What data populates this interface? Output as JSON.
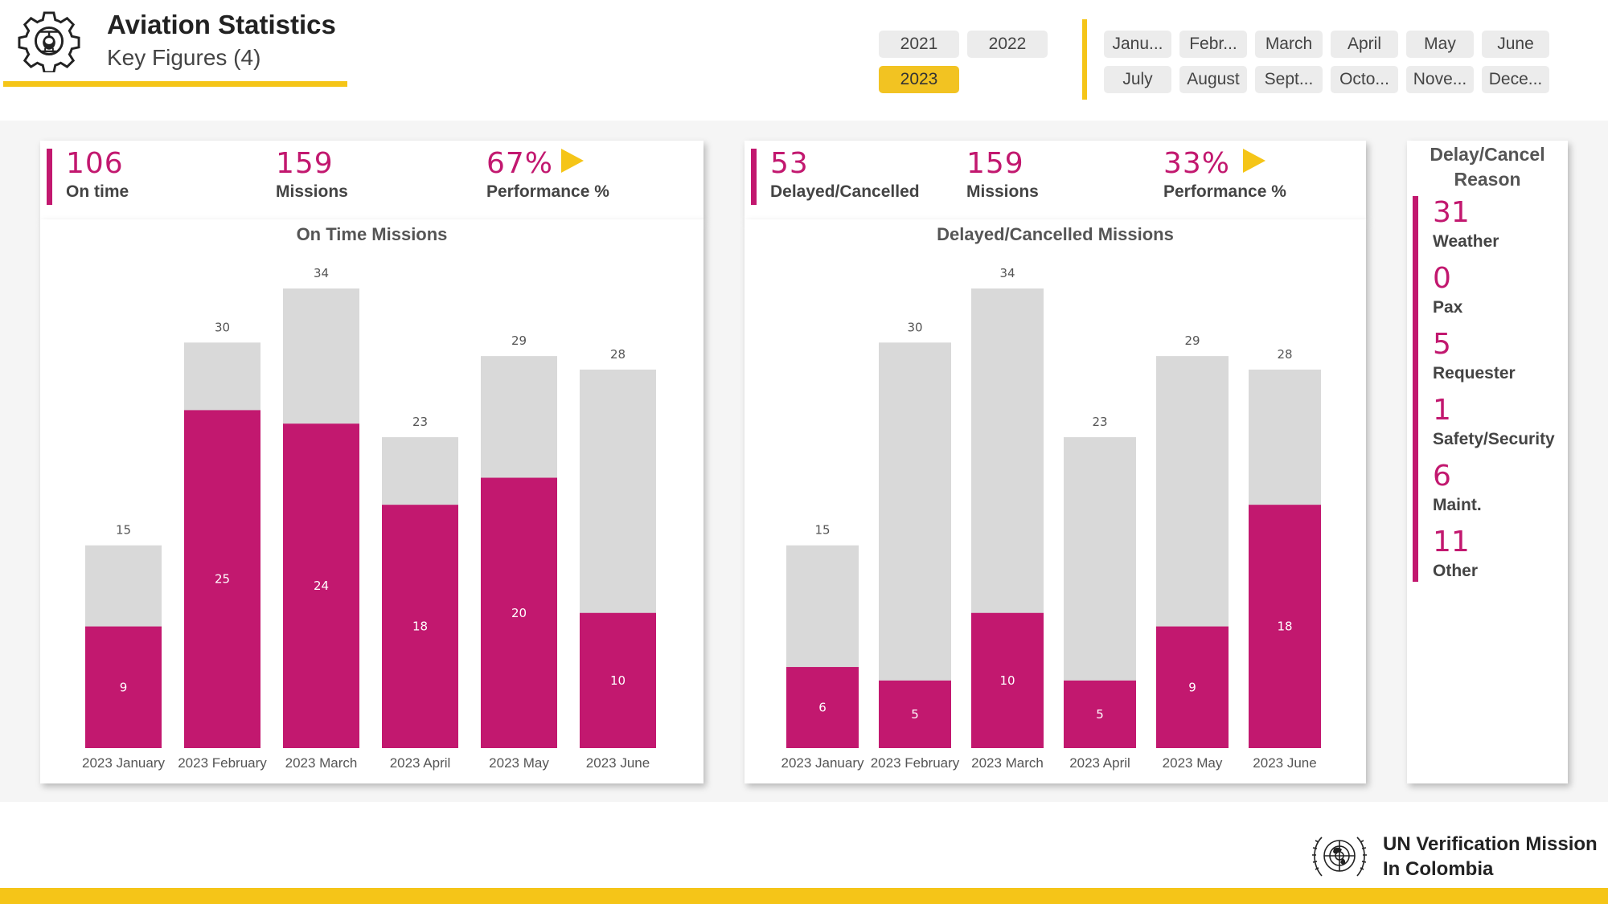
{
  "header": {
    "title": "Aviation Statistics",
    "subtitle": "Key Figures (4)",
    "logo_icon": "helicopter-gear-icon"
  },
  "year_slicer": [
    {
      "label": "2021",
      "selected": false
    },
    {
      "label": "2022",
      "selected": false
    },
    {
      "label": "2023",
      "selected": true
    }
  ],
  "month_slicer": [
    "Janu...",
    "Febr...",
    "March",
    "April",
    "May",
    "June",
    "July",
    "August",
    "Sept...",
    "Octo...",
    "Nove...",
    "Dece..."
  ],
  "on_time": {
    "kpis": [
      {
        "value": "106",
        "label": "On time"
      },
      {
        "value": "159",
        "label": "Missions"
      },
      {
        "value": "67%",
        "label": "Performance %"
      }
    ]
  },
  "delayed": {
    "kpis": [
      {
        "value": "53",
        "label": "Delayed/Cancelled"
      },
      {
        "value": "159",
        "label": "Missions"
      },
      {
        "value": "33%",
        "label": "Performance %"
      }
    ]
  },
  "reasons": {
    "title": "Delay/Cancel Reason",
    "items": [
      {
        "value": "31",
        "label": "Weather"
      },
      {
        "value": "0",
        "label": "Pax"
      },
      {
        "value": "5",
        "label": "Requester"
      },
      {
        "value": "1",
        "label": "Safety/Security"
      },
      {
        "value": "6",
        "label": "Maint."
      },
      {
        "value": "11",
        "label": "Other"
      }
    ]
  },
  "chart_data": [
    {
      "type": "bar",
      "stacked": "overlay",
      "title": "On Time Missions",
      "categories": [
        "2023 January",
        "2023 February",
        "2023 March",
        "2023 April",
        "2023 May",
        "2023 June"
      ],
      "series": [
        {
          "name": "Missions",
          "values": [
            15,
            30,
            34,
            23,
            29,
            28
          ],
          "color": "#d9d9d9"
        },
        {
          "name": "On time",
          "values": [
            9,
            25,
            24,
            18,
            20,
            10
          ],
          "color": "#c2186f"
        }
      ],
      "ylim": [
        0,
        34
      ]
    },
    {
      "type": "bar",
      "stacked": "overlay",
      "title": "Delayed/Cancelled Missions",
      "categories": [
        "2023 January",
        "2023 February",
        "2023 March",
        "2023 April",
        "2023 May",
        "2023 June"
      ],
      "series": [
        {
          "name": "Missions",
          "values": [
            15,
            30,
            34,
            23,
            29,
            28
          ],
          "color": "#d9d9d9"
        },
        {
          "name": "Delayed/Cancelled",
          "values": [
            6,
            5,
            10,
            5,
            9,
            18
          ],
          "color": "#c2186f"
        }
      ],
      "ylim": [
        0,
        34
      ]
    }
  ],
  "footer": {
    "org_line1": "UN Verification Mission",
    "org_line2": "In Colombia",
    "emblem_icon": "un-emblem-icon"
  }
}
